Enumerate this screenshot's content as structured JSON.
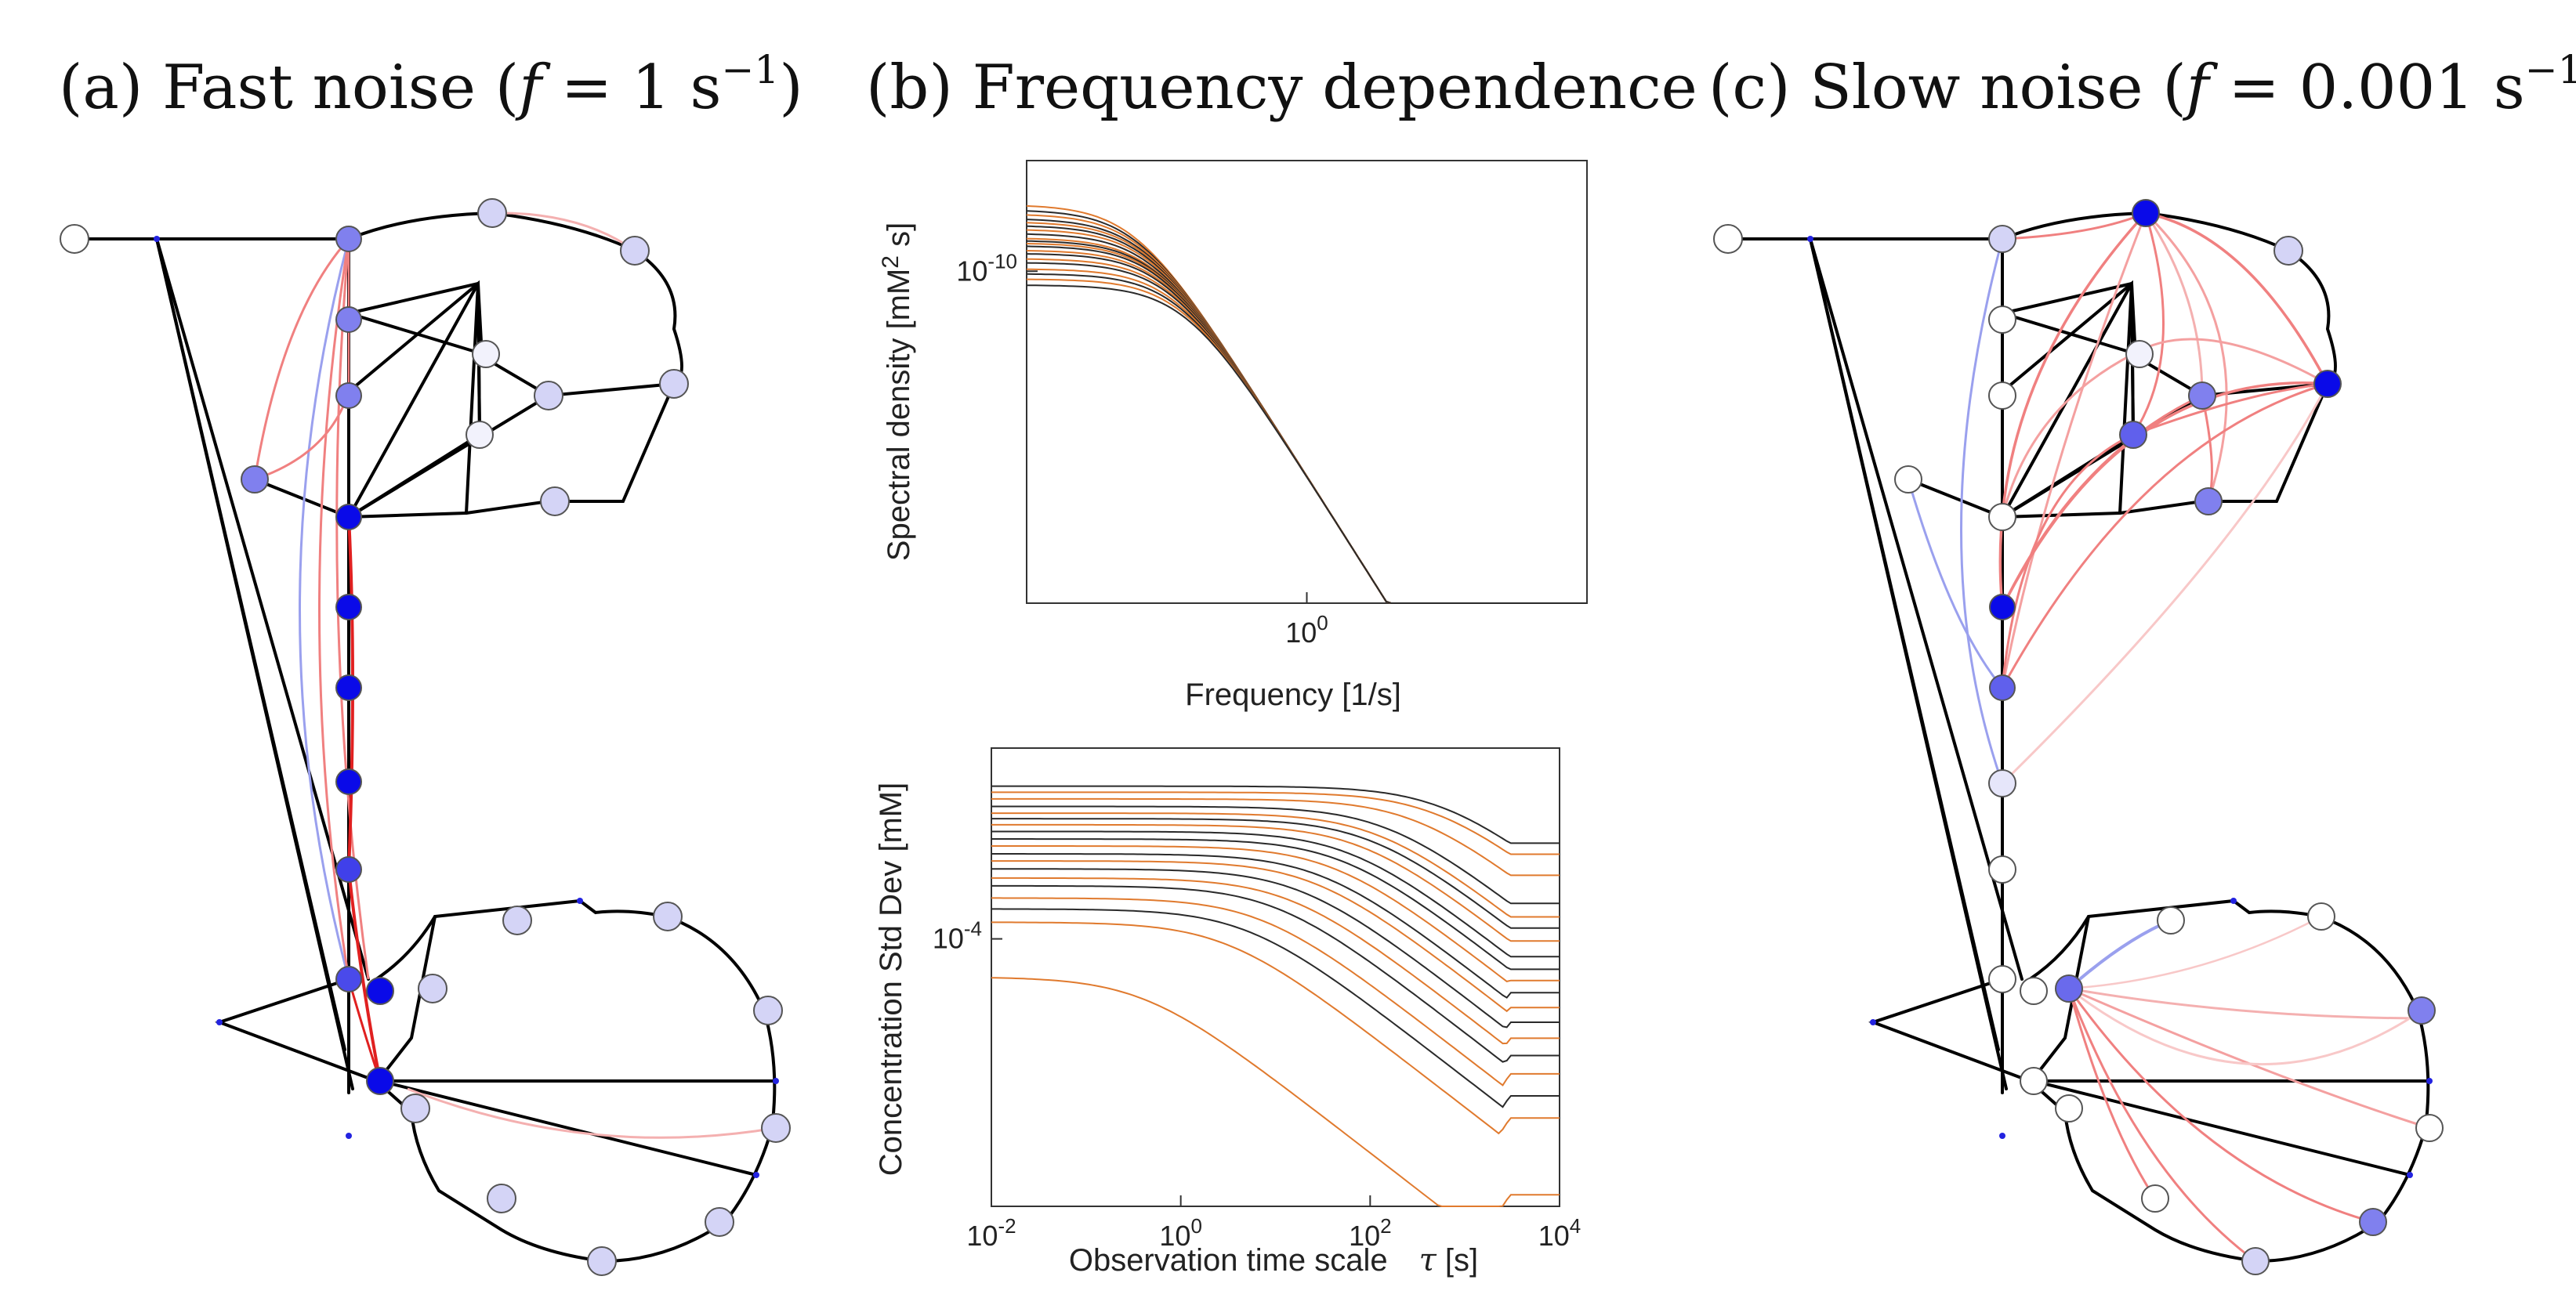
{
  "panels": {
    "a": {
      "label": "(a) Fast noise (",
      "f": "f",
      "eq": " = 1 s",
      "exp": "−1",
      "close": ")"
    },
    "b": {
      "label": "(b) Frequency dependence"
    },
    "c": {
      "label": "(c) Slow noise (",
      "f": "f",
      "eq": " = 0.001 s",
      "exp": "−1",
      "close": ")"
    }
  },
  "colors": {
    "edge": "#000000",
    "node_strong": "#0a0ae8",
    "node_mid": "#8080ee",
    "node_light": "#d4d4f6",
    "node_white": "#ffffff",
    "corr_pos": "#f08080",
    "corr_neg": "#9aa0ee",
    "series_orange": "#e07a2e",
    "series_black": "#2a2a2a"
  },
  "chart_data": [
    {
      "type": "line",
      "xlabel": "Frequency [1/s]",
      "ylabel": "Spectral density [mM",
      "ylabel_exp": "2",
      "ylabel_tail": " s]",
      "x_scale": "log",
      "y_scale": "log",
      "xlim": [
        0.01,
        100
      ],
      "ylim": [
        1e-13,
        1e-09
      ],
      "xticks": [
        {
          "base": "10",
          "exp": "0",
          "value": 1
        }
      ],
      "yticks": [
        {
          "base": "10",
          "exp": "-10",
          "value": 1e-10
        }
      ],
      "series_plateaus": [
        4e-10,
        3.6e-10,
        3.3e-10,
        3e-10,
        2.8e-10,
        2.6e-10,
        2.4e-10,
        2.2e-10,
        2e-10,
        1.9e-10,
        1.8e-10,
        1.7e-10,
        1.55e-10,
        1.45e-10,
        1.3e-10,
        1.2e-10,
        1.05e-10,
        9.5e-11,
        8.5e-11,
        7.5e-11
      ],
      "corner_frequency": 0.08,
      "series_colors": [
        "orange",
        "black"
      ]
    },
    {
      "type": "line",
      "xlabel": "Observation time scale",
      "xlabel_sym": "τ",
      "xlabel_unit": " [s]",
      "ylabel": "Concentration Std Dev [mM]",
      "x_scale": "log",
      "y_scale": "log",
      "xlim": [
        0.01,
        10000
      ],
      "ylim": [
        1.5e-06,
        0.002
      ],
      "xticks": [
        {
          "base": "10",
          "exp": "-2",
          "value": 0.01
        },
        {
          "base": "10",
          "exp": "0",
          "value": 1
        },
        {
          "base": "10",
          "exp": "2",
          "value": 100
        },
        {
          "base": "10",
          "exp": "4",
          "value": 10000
        }
      ],
      "yticks": [
        {
          "base": "10",
          "exp": "-4",
          "value": 0.0001
        }
      ],
      "series": [
        {
          "start": 0.0011,
          "end": 0.00033,
          "knee": 600,
          "color": "black"
        },
        {
          "start": 0.001,
          "end": 0.00027,
          "knee": 500,
          "color": "orange"
        },
        {
          "start": 0.0009,
          "end": 0.00021,
          "knee": 300,
          "color": "orange"
        },
        {
          "start": 0.0008,
          "end": 0.00016,
          "knee": 150,
          "color": "black"
        },
        {
          "start": 0.00072,
          "end": 0.00013,
          "knee": 120,
          "color": "orange"
        },
        {
          "start": 0.00066,
          "end": 0.00011,
          "knee": 100,
          "color": "black"
        },
        {
          "start": 0.0006,
          "end": 9.2e-05,
          "knee": 80,
          "color": "orange"
        },
        {
          "start": 0.00054,
          "end": 7.5e-05,
          "knee": 60,
          "color": "black"
        },
        {
          "start": 0.00048,
          "end": 6.2e-05,
          "knee": 50,
          "color": "black"
        },
        {
          "start": 0.00043,
          "end": 5.2e-05,
          "knee": 40,
          "color": "orange"
        },
        {
          "start": 0.00038,
          "end": 4.3e-05,
          "knee": 30,
          "color": "black"
        },
        {
          "start": 0.00034,
          "end": 3.4e-05,
          "knee": 25,
          "color": "orange"
        },
        {
          "start": 0.0003,
          "end": 2.7e-05,
          "knee": 18,
          "color": "black"
        },
        {
          "start": 0.00026,
          "end": 2.1e-05,
          "knee": 14,
          "color": "orange"
        },
        {
          "start": 0.00023,
          "end": 1.6e-05,
          "knee": 10,
          "color": "black"
        },
        {
          "start": 0.00019,
          "end": 1.2e-05,
          "knee": 7,
          "color": "orange"
        },
        {
          "start": 0.00016,
          "end": 8.5e-06,
          "knee": 5,
          "color": "black"
        },
        {
          "start": 0.00013,
          "end": 6e-06,
          "knee": 3,
          "color": "orange"
        },
        {
          "start": 5.5e-05,
          "end": 1.8e-06,
          "knee": 0.4,
          "color": "orange"
        }
      ]
    }
  ]
}
